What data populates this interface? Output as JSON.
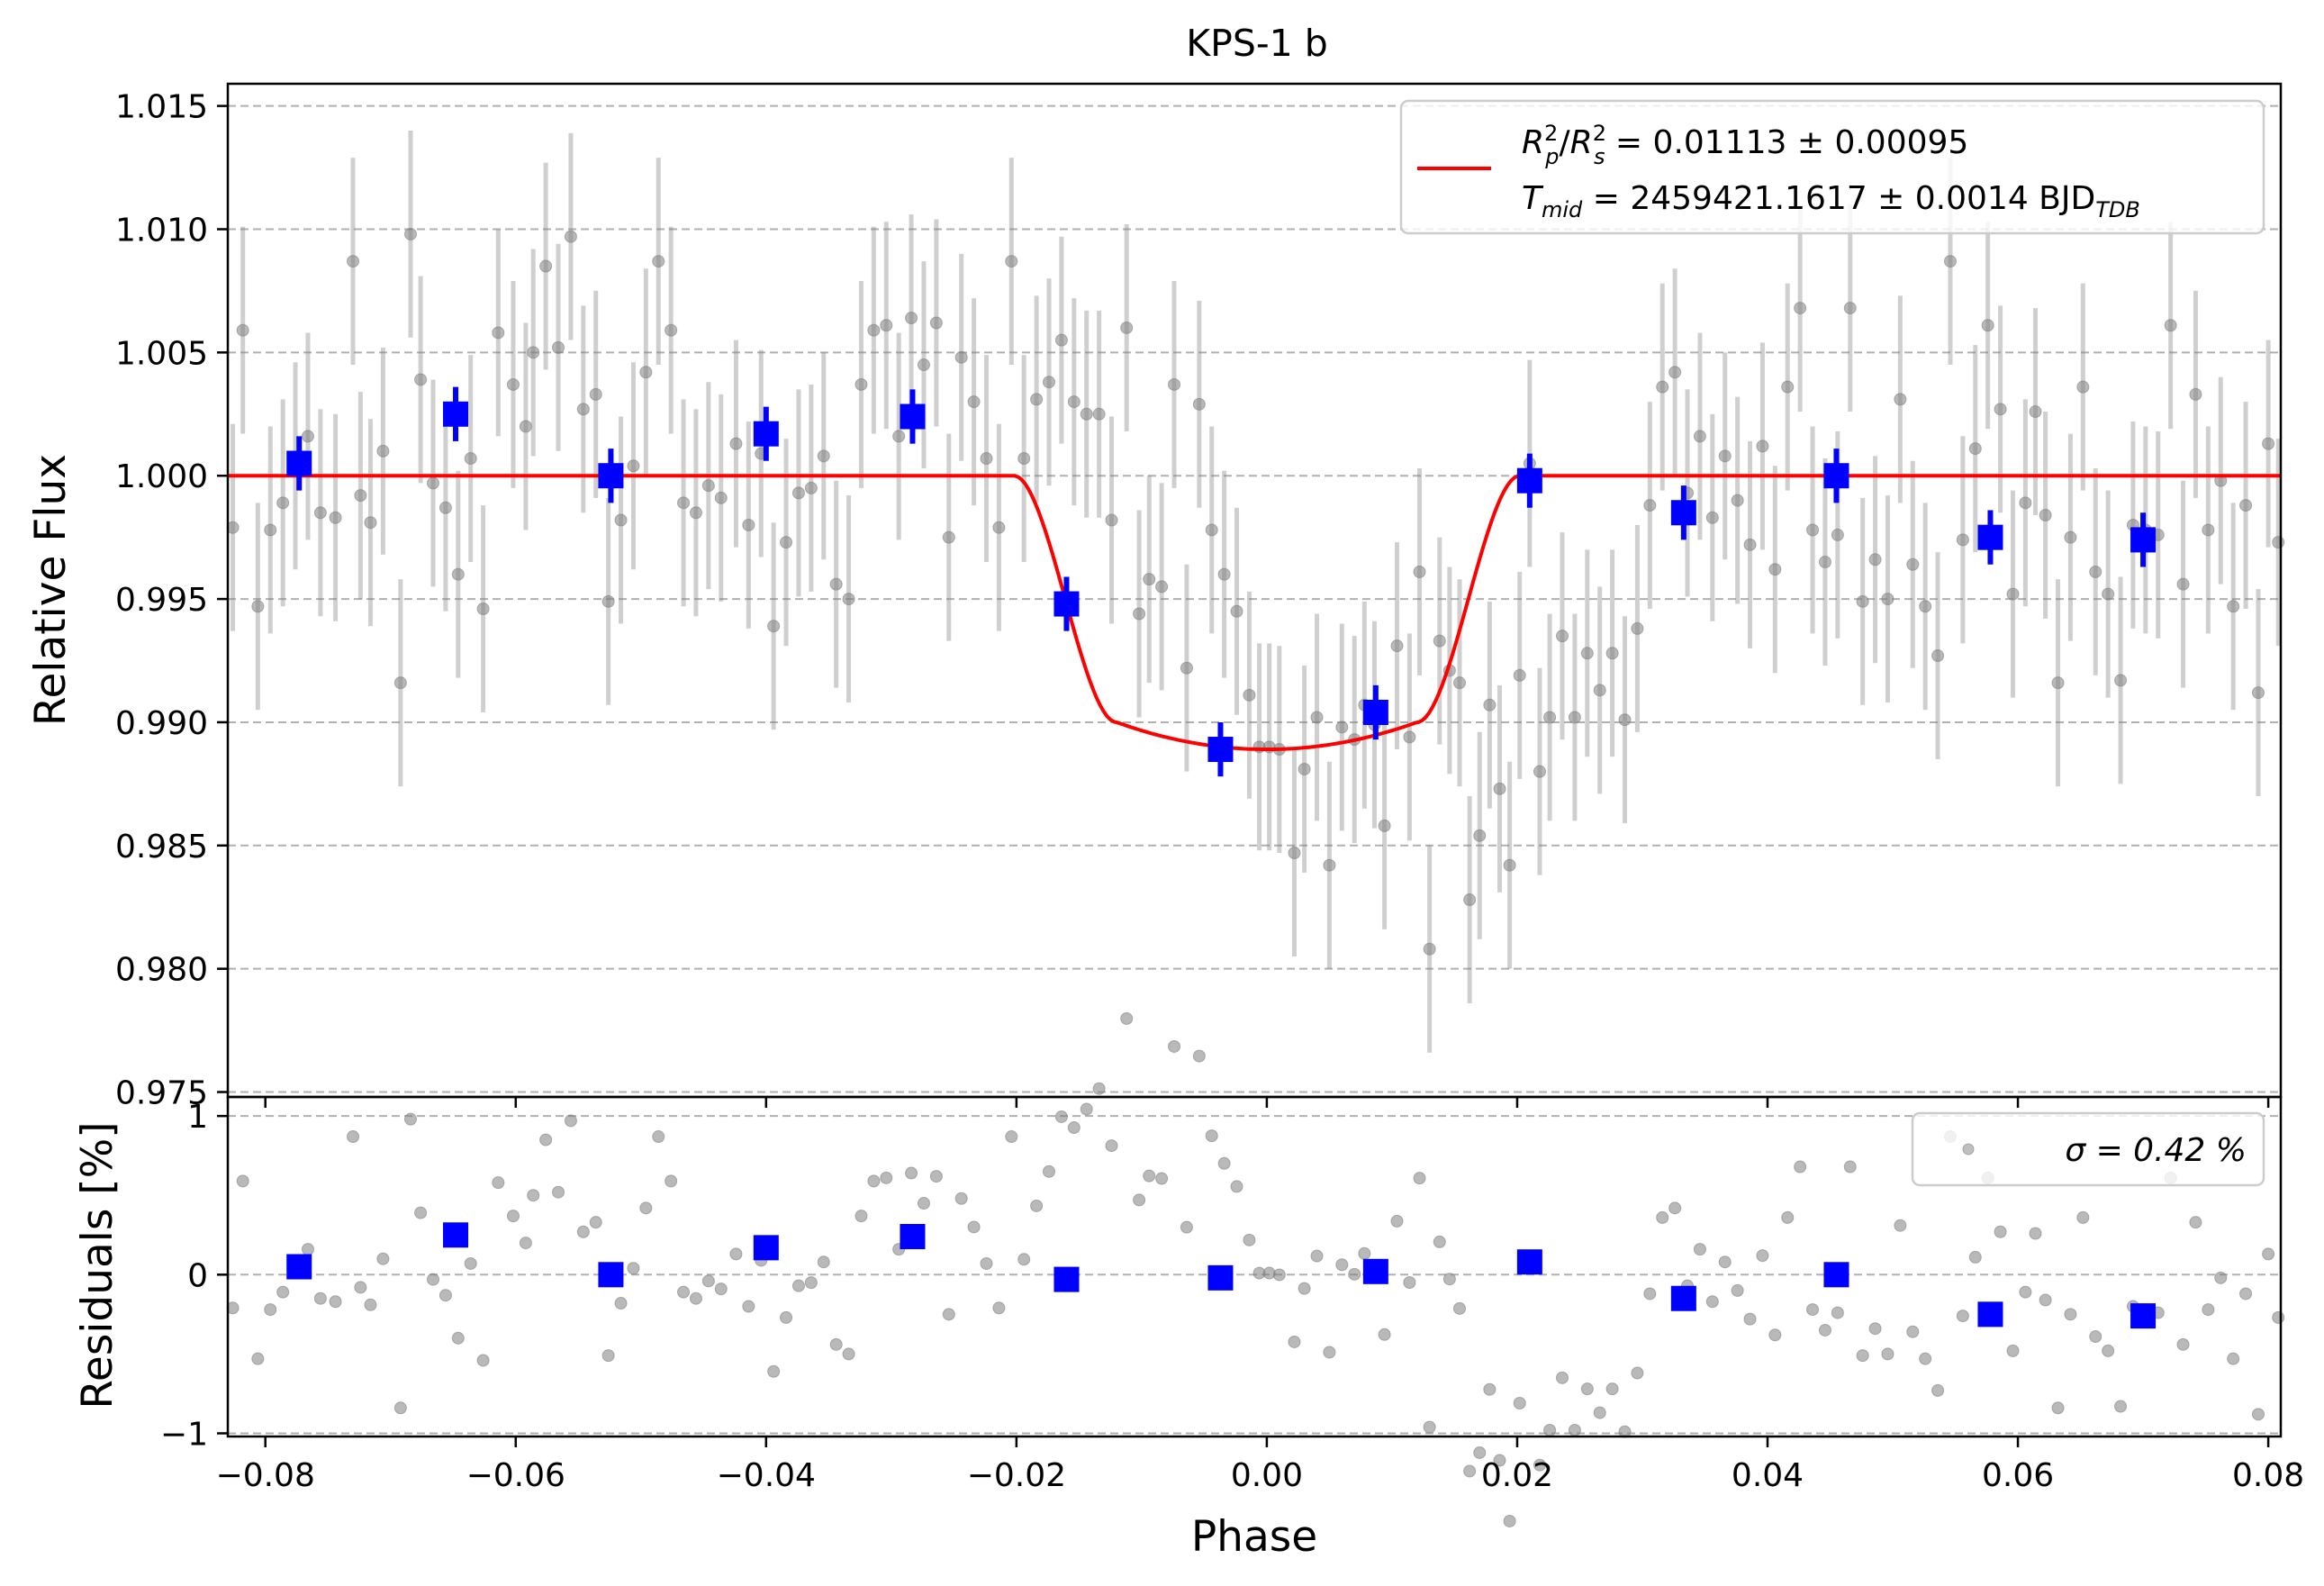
{
  "chart_data": [
    {
      "panel": "main",
      "type": "scatter",
      "title": "KPS-1 b",
      "xlabel": "",
      "ylabel": "Relative Flux",
      "xlim": [
        -0.083,
        0.081
      ],
      "ylim": [
        0.9748,
        1.0159
      ],
      "x_ticks": [
        -0.08,
        -0.06,
        -0.04,
        -0.02,
        0.0,
        0.02,
        0.04,
        0.06,
        0.08
      ],
      "y_ticks": [
        0.975,
        0.98,
        0.985,
        0.99,
        0.995,
        1.0,
        1.005,
        1.01,
        1.015
      ],
      "y_tick_labels": [
        "0.975",
        "0.980",
        "0.985",
        "0.990",
        "0.995",
        "1.000",
        "1.005",
        "1.010",
        "1.015"
      ],
      "grid": "horizontal dashed",
      "legend": {
        "placement": "upper right",
        "entries": [
          {
            "line1": "R²p/R²s = 0.01113 ± 0.00095",
            "line2": "Tmid = 2459421.1617 ± 0.0014 BJD_TDB"
          }
        ]
      },
      "model": {
        "name": "",
        "color": "#ff0000",
        "depth": 0.01113,
        "baseline": 1.0,
        "min_flux": 0.9889,
        "contact_phases": [
          -0.0202,
          -0.012,
          0.012,
          0.0202
        ]
      },
      "raw_error": 0.0042,
      "raw_points": [
        [
          -0.0826,
          0.9979
        ],
        [
          -0.0818,
          1.0059
        ],
        [
          -0.0806,
          0.9947
        ],
        [
          -0.0796,
          0.9978
        ],
        [
          -0.0786,
          0.9989
        ],
        [
          -0.0776,
          1.0004
        ],
        [
          -0.0766,
          1.0016
        ],
        [
          -0.0756,
          0.9985
        ],
        [
          -0.0744,
          0.9983
        ],
        [
          -0.073,
          1.0087
        ],
        [
          -0.0724,
          0.9992
        ],
        [
          -0.0716,
          0.9981
        ],
        [
          -0.0706,
          1.001
        ],
        [
          -0.0692,
          0.9916
        ],
        [
          -0.0684,
          1.0098
        ],
        [
          -0.0676,
          1.0039
        ],
        [
          -0.0666,
          0.9997
        ],
        [
          -0.0656,
          0.9987
        ],
        [
          -0.0646,
          0.996
        ],
        [
          -0.0636,
          1.0007
        ],
        [
          -0.0626,
          0.9946
        ],
        [
          -0.0614,
          1.0058
        ],
        [
          -0.0602,
          1.0037
        ],
        [
          -0.0592,
          1.002
        ],
        [
          -0.0586,
          1.005
        ],
        [
          -0.0576,
          1.0085
        ],
        [
          -0.0566,
          1.0052
        ],
        [
          -0.0556,
          1.0097
        ],
        [
          -0.0546,
          1.0027
        ],
        [
          -0.0536,
          1.0033
        ],
        [
          -0.0526,
          0.9949
        ],
        [
          -0.0516,
          0.9982
        ],
        [
          -0.0506,
          1.0004
        ],
        [
          -0.0496,
          1.0042
        ],
        [
          -0.0486,
          1.0087
        ],
        [
          -0.0476,
          1.0059
        ],
        [
          -0.0466,
          0.9989
        ],
        [
          -0.0456,
          0.9985
        ],
        [
          -0.0446,
          0.9996
        ],
        [
          -0.0436,
          0.9991
        ],
        [
          -0.0424,
          1.0013
        ],
        [
          -0.0414,
          0.998
        ],
        [
          -0.0404,
          1.0009
        ],
        [
          -0.0394,
          0.9939
        ],
        [
          -0.0384,
          0.9973
        ],
        [
          -0.0374,
          0.9993
        ],
        [
          -0.0364,
          0.9995
        ],
        [
          -0.0354,
          1.0008
        ],
        [
          -0.0344,
          0.9956
        ],
        [
          -0.0334,
          0.995
        ],
        [
          -0.0324,
          1.0037
        ],
        [
          -0.0314,
          1.0059
        ],
        [
          -0.0304,
          1.0061
        ],
        [
          -0.0294,
          1.0016
        ],
        [
          -0.0284,
          1.0064
        ],
        [
          -0.0274,
          1.0045
        ],
        [
          -0.0264,
          1.0062
        ],
        [
          -0.0254,
          0.9975
        ],
        [
          -0.0244,
          1.0048
        ],
        [
          -0.0234,
          1.003
        ],
        [
          -0.0224,
          1.0007
        ],
        [
          -0.0214,
          0.9979
        ],
        [
          -0.0204,
          1.0087
        ],
        [
          -0.0194,
          1.0007
        ],
        [
          -0.0184,
          1.0031
        ],
        [
          -0.0174,
          1.0038
        ],
        [
          -0.0164,
          1.0055
        ],
        [
          -0.0154,
          1.003
        ],
        [
          -0.0144,
          1.0025
        ],
        [
          -0.0134,
          1.0025
        ],
        [
          -0.0124,
          0.9982
        ],
        [
          -0.0112,
          1.006
        ],
        [
          -0.0102,
          0.9944
        ],
        [
          -0.0094,
          0.9958
        ],
        [
          -0.0084,
          0.9955
        ],
        [
          -0.0074,
          1.0037
        ],
        [
          -0.0064,
          0.9922
        ],
        [
          -0.0054,
          1.0029
        ],
        [
          -0.0044,
          0.9978
        ],
        [
          -0.0034,
          0.996
        ],
        [
          -0.0024,
          0.9945
        ],
        [
          -0.0014,
          0.9911
        ],
        [
          -0.0006,
          0.989
        ],
        [
          0.0002,
          0.989
        ],
        [
          0.001,
          0.9889
        ],
        [
          0.0022,
          0.9847
        ],
        [
          0.003,
          0.9881
        ],
        [
          0.004,
          0.9902
        ],
        [
          0.005,
          0.9842
        ],
        [
          0.006,
          0.9898
        ],
        [
          0.007,
          0.9893
        ],
        [
          0.0078,
          0.9907
        ],
        [
          0.0086,
          0.9899
        ],
        [
          0.0094,
          0.9858
        ],
        [
          0.0104,
          0.9931
        ],
        [
          0.0114,
          0.9894
        ],
        [
          0.0122,
          0.9961
        ],
        [
          0.013,
          0.9808
        ],
        [
          0.0138,
          0.9933
        ],
        [
          0.0146,
          0.9921
        ],
        [
          0.0154,
          0.9916
        ],
        [
          0.0162,
          0.9828
        ],
        [
          0.017,
          0.9854
        ],
        [
          0.0178,
          0.9907
        ],
        [
          0.0186,
          0.9873
        ],
        [
          0.0194,
          0.9842
        ],
        [
          0.0202,
          0.9919
        ],
        [
          0.021,
          1.0005
        ],
        [
          0.0218,
          0.988
        ],
        [
          0.0226,
          0.9902
        ],
        [
          0.0236,
          0.9935
        ],
        [
          0.0246,
          0.9902
        ],
        [
          0.0256,
          0.9928
        ],
        [
          0.0266,
          0.9913
        ],
        [
          0.0276,
          0.9928
        ],
        [
          0.0286,
          0.9901
        ],
        [
          0.0296,
          0.9938
        ],
        [
          0.0306,
          0.9988
        ],
        [
          0.0316,
          1.0036
        ],
        [
          0.0326,
          1.0042
        ],
        [
          0.0336,
          0.9993
        ],
        [
          0.0346,
          1.0016
        ],
        [
          0.0356,
          0.9983
        ],
        [
          0.0366,
          1.0008
        ],
        [
          0.0376,
          0.999
        ],
        [
          0.0386,
          0.9972
        ],
        [
          0.0396,
          1.0012
        ],
        [
          0.0406,
          0.9962
        ],
        [
          0.0416,
          1.0036
        ],
        [
          0.0426,
          1.0068
        ],
        [
          0.0436,
          0.9978
        ],
        [
          0.0446,
          0.9965
        ],
        [
          0.0456,
          0.9976
        ],
        [
          0.0466,
          1.0068
        ],
        [
          0.0476,
          0.9949
        ],
        [
          0.0486,
          0.9966
        ],
        [
          0.0496,
          0.995
        ],
        [
          0.0506,
          1.0031
        ],
        [
          0.0516,
          0.9964
        ],
        [
          0.0526,
          0.9947
        ],
        [
          0.0536,
          0.9927
        ],
        [
          0.0546,
          1.0087
        ],
        [
          0.0556,
          0.9974
        ],
        [
          0.0566,
          1.0011
        ],
        [
          0.0576,
          1.0061
        ],
        [
          0.0586,
          1.0027
        ],
        [
          0.0596,
          0.9952
        ],
        [
          0.0606,
          0.9989
        ],
        [
          0.0614,
          1.0026
        ],
        [
          0.0622,
          0.9984
        ],
        [
          0.0632,
          0.9916
        ],
        [
          0.0642,
          0.9975
        ],
        [
          0.0652,
          1.0036
        ],
        [
          0.0662,
          0.9961
        ],
        [
          0.0672,
          0.9952
        ],
        [
          0.0682,
          0.9917
        ],
        [
          0.0692,
          0.998
        ],
        [
          0.0702,
          0.9978
        ],
        [
          0.0712,
          0.9976
        ],
        [
          0.0722,
          1.0061
        ],
        [
          0.0732,
          0.9956
        ],
        [
          0.0742,
          1.0033
        ],
        [
          0.0752,
          0.9978
        ],
        [
          0.0762,
          0.9998
        ],
        [
          0.0772,
          0.9947
        ],
        [
          0.0782,
          0.9988
        ],
        [
          0.0792,
          0.9912
        ],
        [
          0.08,
          1.0013
        ],
        [
          0.0808,
          0.9973
        ]
      ],
      "binned_points": [
        {
          "x": -0.0773,
          "y": 1.0005,
          "yerr": 0.0011
        },
        {
          "x": -0.0648,
          "y": 1.0025,
          "yerr": 0.0011
        },
        {
          "x": -0.0524,
          "y": 1.0,
          "yerr": 0.0011
        },
        {
          "x": -0.04,
          "y": 1.0017,
          "yerr": 0.0011
        },
        {
          "x": -0.0283,
          "y": 1.0024,
          "yerr": 0.0011
        },
        {
          "x": -0.016,
          "y": 0.9948,
          "yerr": 0.0011
        },
        {
          "x": -0.0037,
          "y": 0.9889,
          "yerr": 0.0011
        },
        {
          "x": 0.0087,
          "y": 0.9904,
          "yerr": 0.0011
        },
        {
          "x": 0.021,
          "y": 0.9998,
          "yerr": 0.0011
        },
        {
          "x": 0.0333,
          "y": 0.9985,
          "yerr": 0.0011
        },
        {
          "x": 0.0455,
          "y": 1.0,
          "yerr": 0.0011
        },
        {
          "x": 0.0578,
          "y": 0.9975,
          "yerr": 0.0011
        },
        {
          "x": 0.07,
          "y": 0.9974,
          "yerr": 0.0011
        }
      ],
      "raw_color": "#808080",
      "binned_color": "#0000ff"
    },
    {
      "panel": "residuals",
      "type": "scatter",
      "xlabel": "Phase",
      "ylabel": "Residuals [%]",
      "xlim": [
        -0.083,
        0.081
      ],
      "ylim": [
        -1.02,
        1.12
      ],
      "x_ticks": [
        -0.08,
        -0.06,
        -0.04,
        -0.02,
        0.0,
        0.02,
        0.04,
        0.06,
        0.08
      ],
      "x_tick_labels": [
        "−0.08",
        "−0.06",
        "−0.04",
        "−0.02",
        "0.00",
        "0.02",
        "0.04",
        "0.06",
        "0.08"
      ],
      "y_ticks": [
        -1,
        0,
        1
      ],
      "y_tick_labels": [
        "−1",
        "0",
        "1"
      ],
      "grid": "horizontal dashed",
      "legend": {
        "placement": "upper right",
        "entries": [
          {
            "label": "σ = 0.42 %"
          }
        ]
      },
      "binned_points": [
        {
          "x": -0.0773,
          "y": 0.05
        },
        {
          "x": -0.0648,
          "y": 0.25
        },
        {
          "x": -0.0524,
          "y": 0.0
        },
        {
          "x": -0.04,
          "y": 0.17
        },
        {
          "x": -0.0283,
          "y": 0.24
        },
        {
          "x": -0.016,
          "y": -0.03
        },
        {
          "x": -0.0037,
          "y": -0.02
        },
        {
          "x": 0.0087,
          "y": 0.02
        },
        {
          "x": 0.021,
          "y": 0.08
        },
        {
          "x": 0.0333,
          "y": -0.15
        },
        {
          "x": 0.0455,
          "y": 0.0
        },
        {
          "x": 0.0578,
          "y": -0.25
        },
        {
          "x": 0.07,
          "y": -0.26
        }
      ]
    }
  ]
}
